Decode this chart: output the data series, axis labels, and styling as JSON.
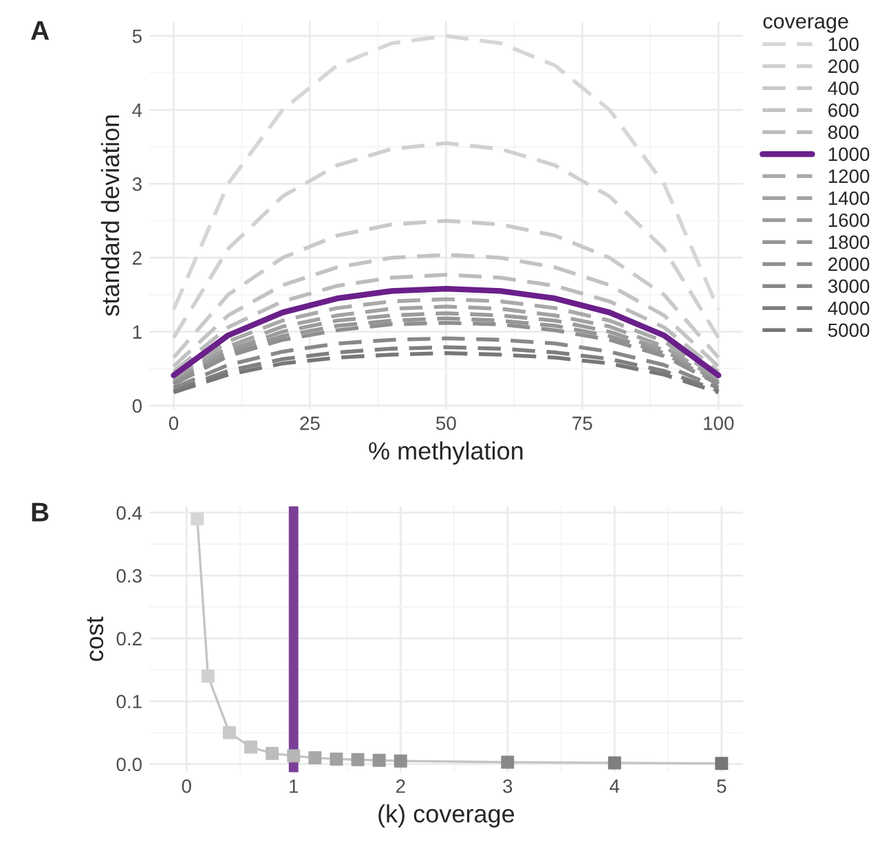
{
  "chart_data": [
    {
      "type": "line",
      "title": "A",
      "xlabel": "% methylation",
      "ylabel": "standard deviation",
      "legend_title": "coverage",
      "legend": "right",
      "grid": true,
      "xlim": [
        -4.5,
        104.5
      ],
      "ylim": [
        -0.05,
        5.2
      ],
      "xticks": [
        0,
        25,
        50,
        75,
        100
      ],
      "yticks": [
        0,
        1,
        2,
        3,
        4,
        5
      ],
      "x": [
        0,
        10,
        20,
        30,
        40,
        50,
        60,
        70,
        80,
        90,
        100
      ],
      "series": [
        {
          "name": "100",
          "color": "#d6d6d6",
          "line_style": "dashed",
          "values": [
            1.3,
            3.0,
            4.0,
            4.6,
            4.9,
            5.0,
            4.9,
            4.6,
            4.0,
            3.0,
            1.3
          ]
        },
        {
          "name": "200",
          "color": "#d0d0d0",
          "line_style": "dashed",
          "values": [
            0.92,
            2.12,
            2.83,
            3.25,
            3.47,
            3.55,
            3.47,
            3.25,
            2.83,
            2.12,
            0.92
          ]
        },
        {
          "name": "400",
          "color": "#c9c9c9",
          "line_style": "dashed",
          "values": [
            0.65,
            1.5,
            2.0,
            2.3,
            2.45,
            2.5,
            2.45,
            2.3,
            2.0,
            1.5,
            0.65
          ]
        },
        {
          "name": "600",
          "color": "#c3c3c3",
          "line_style": "dashed",
          "values": [
            0.53,
            1.22,
            1.63,
            1.87,
            2.0,
            2.04,
            2.0,
            1.87,
            1.63,
            1.22,
            0.53
          ]
        },
        {
          "name": "800",
          "color": "#bcbcbc",
          "line_style": "dashed",
          "values": [
            0.46,
            1.06,
            1.41,
            1.62,
            1.73,
            1.77,
            1.73,
            1.62,
            1.41,
            1.06,
            0.46
          ]
        },
        {
          "name": "1000",
          "color": "#6a1f8a",
          "line_style": "solid",
          "values": [
            0.41,
            0.95,
            1.26,
            1.45,
            1.55,
            1.58,
            1.55,
            1.45,
            1.26,
            0.95,
            0.41
          ]
        },
        {
          "name": "1200",
          "color": "#a9a9a9",
          "line_style": "dashed",
          "values": [
            0.37,
            0.87,
            1.15,
            1.32,
            1.41,
            1.44,
            1.41,
            1.32,
            1.15,
            0.87,
            0.37
          ]
        },
        {
          "name": "1400",
          "color": "#a2a2a2",
          "line_style": "dashed",
          "values": [
            0.34,
            0.8,
            1.07,
            1.22,
            1.31,
            1.34,
            1.31,
            1.22,
            1.07,
            0.8,
            0.34
          ]
        },
        {
          "name": "1600",
          "color": "#9b9b9b",
          "line_style": "dashed",
          "values": [
            0.32,
            0.75,
            1.0,
            1.15,
            1.22,
            1.25,
            1.22,
            1.15,
            1.0,
            0.75,
            0.32
          ]
        },
        {
          "name": "1800",
          "color": "#959595",
          "line_style": "dashed",
          "values": [
            0.3,
            0.71,
            0.94,
            1.08,
            1.15,
            1.18,
            1.15,
            1.08,
            0.94,
            0.71,
            0.3
          ]
        },
        {
          "name": "2000",
          "color": "#8f8f8f",
          "line_style": "dashed",
          "values": [
            0.29,
            0.67,
            0.89,
            1.02,
            1.1,
            1.12,
            1.1,
            1.02,
            0.89,
            0.67,
            0.29
          ]
        },
        {
          "name": "3000",
          "color": "#888888",
          "line_style": "dashed",
          "values": [
            0.24,
            0.55,
            0.73,
            0.84,
            0.89,
            0.91,
            0.89,
            0.84,
            0.73,
            0.55,
            0.24
          ]
        },
        {
          "name": "4000",
          "color": "#7f7f7f",
          "line_style": "dashed",
          "values": [
            0.2,
            0.47,
            0.63,
            0.72,
            0.77,
            0.79,
            0.77,
            0.72,
            0.63,
            0.47,
            0.2
          ]
        },
        {
          "name": "5000",
          "color": "#777777",
          "line_style": "dashed",
          "values": [
            0.18,
            0.42,
            0.57,
            0.65,
            0.69,
            0.71,
            0.69,
            0.65,
            0.57,
            0.42,
            0.18
          ]
        }
      ]
    },
    {
      "type": "line",
      "title": "B",
      "xlabel": "(k) coverage",
      "ylabel": "cost",
      "grid": true,
      "legend": false,
      "marker": "square",
      "xlim": [
        -0.35,
        5.2
      ],
      "ylim": [
        -0.013,
        0.41
      ],
      "xticks": [
        0,
        1,
        2,
        3,
        4,
        5
      ],
      "yticks": [
        {
          "value": 0,
          "label": "0.0"
        },
        0.1,
        0.2,
        0.3,
        0.4
      ],
      "ref_lines": [
        {
          "axis": "x",
          "value": 1,
          "color": "#7b3f98",
          "line_style": "solid"
        }
      ],
      "x": [
        0.1,
        0.2,
        0.4,
        0.6,
        0.8,
        1.0,
        1.2,
        1.4,
        1.6,
        1.8,
        2,
        3,
        4,
        5
      ],
      "series": [
        {
          "color": "#c4c4c4",
          "colors": [
            "#d6d6d6",
            "#d0d0d0",
            "#c9c9c9",
            "#c3c3c3",
            "#bcbcbc",
            "#b6b6b6",
            "#a9a9a9",
            "#a2a2a2",
            "#9b9b9b",
            "#959595",
            "#8f8f8f",
            "#888888",
            "#7f7f7f",
            "#777777"
          ],
          "values": [
            0.39,
            0.14,
            0.05,
            0.027,
            0.017,
            0.013,
            0.01,
            0.008,
            0.007,
            0.006,
            0.005,
            0.003,
            0.002,
            0.001
          ]
        }
      ]
    }
  ]
}
